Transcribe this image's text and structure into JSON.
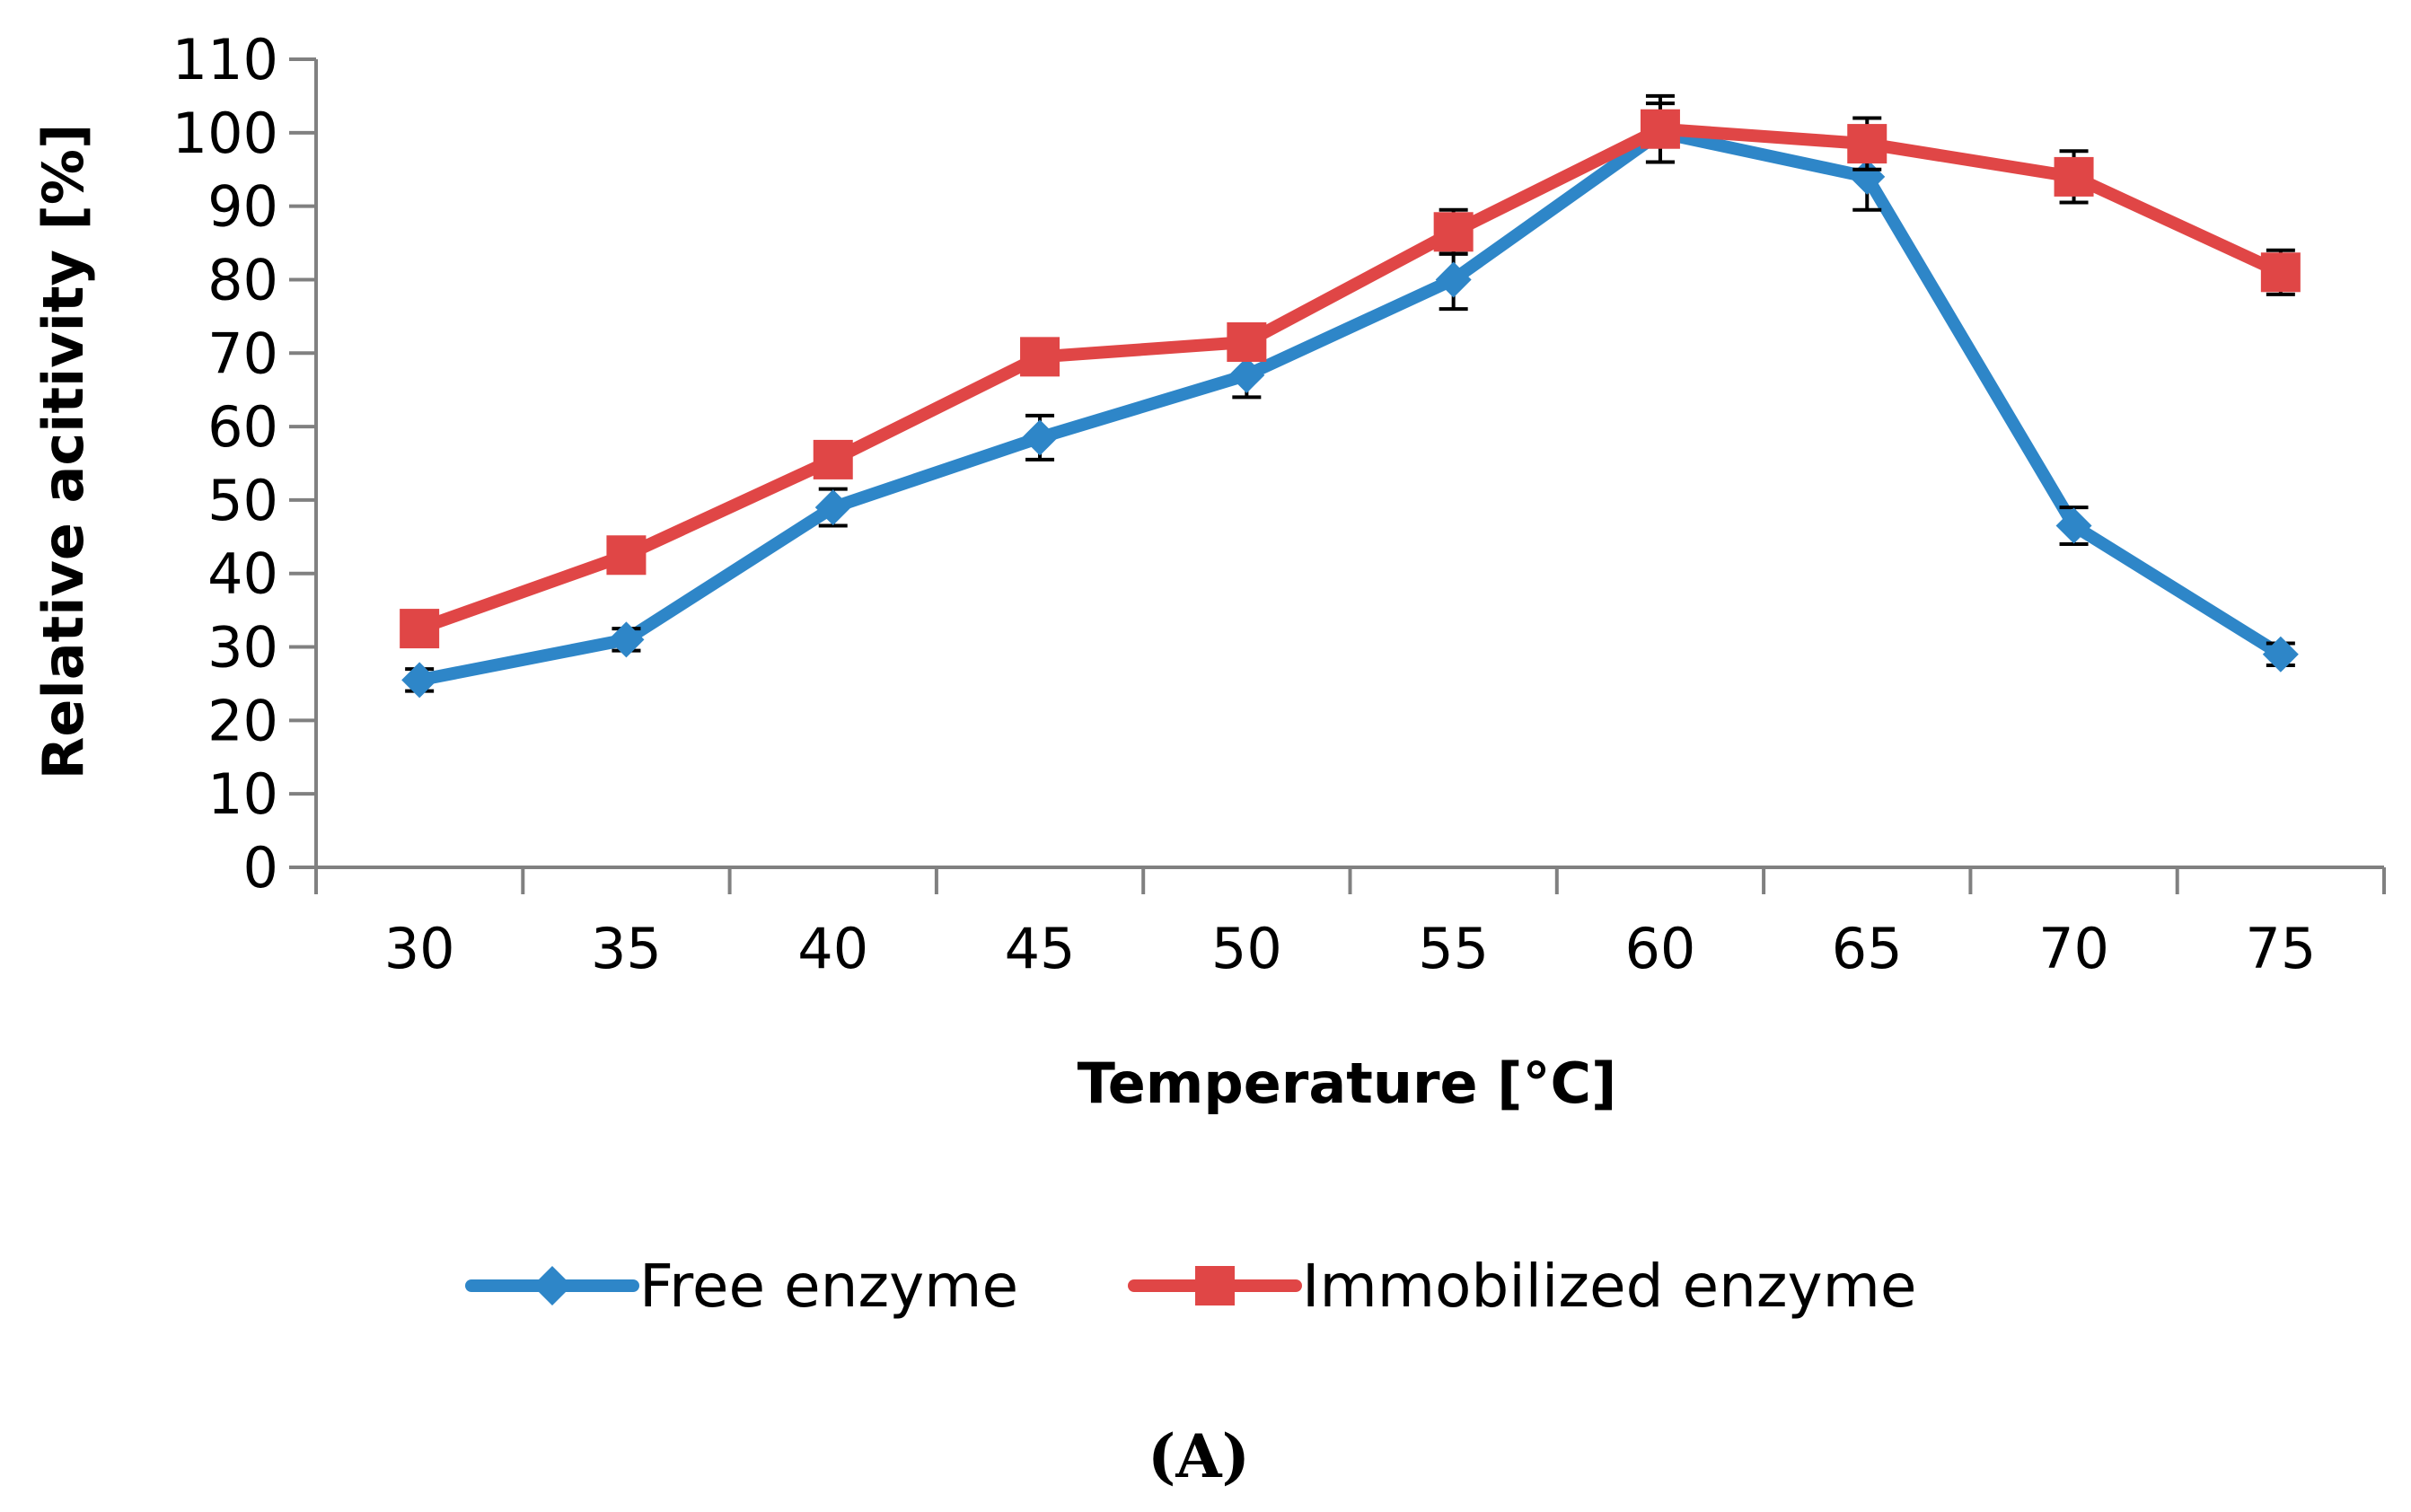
{
  "chart_data": {
    "type": "line",
    "xlabel": "Temperature [°C]",
    "ylabel": "Relative acitivity [%]",
    "categories": [
      "30",
      "35",
      "40",
      "45",
      "50",
      "55",
      "60",
      "65",
      "70",
      "75"
    ],
    "ylim": [
      0,
      110
    ],
    "yticks": [
      "0",
      "10",
      "20",
      "30",
      "40",
      "50",
      "60",
      "70",
      "80",
      "90",
      "100",
      "110"
    ],
    "grid": false,
    "legend_position": "bottom",
    "series": [
      {
        "name": "Free enzyme",
        "color": "#2E86C8",
        "marker": "diamond",
        "values": [
          25.5,
          31,
          49,
          58.5,
          67,
          80,
          100,
          94,
          46.5,
          29
        ],
        "errors": [
          1.5,
          1.5,
          2.5,
          3,
          3,
          4,
          4,
          4.5,
          2.5,
          1.5
        ]
      },
      {
        "name": "Immobilized enzyme",
        "color": "#E04646",
        "marker": "square",
        "values": [
          32.5,
          42.5,
          55.5,
          69.5,
          71.5,
          86.5,
          100.5,
          98.5,
          94,
          81
        ],
        "errors": [
          1,
          1,
          1.5,
          2,
          2,
          3,
          4.5,
          3.5,
          3.5,
          3
        ]
      }
    ]
  },
  "panel_label": "(A)"
}
